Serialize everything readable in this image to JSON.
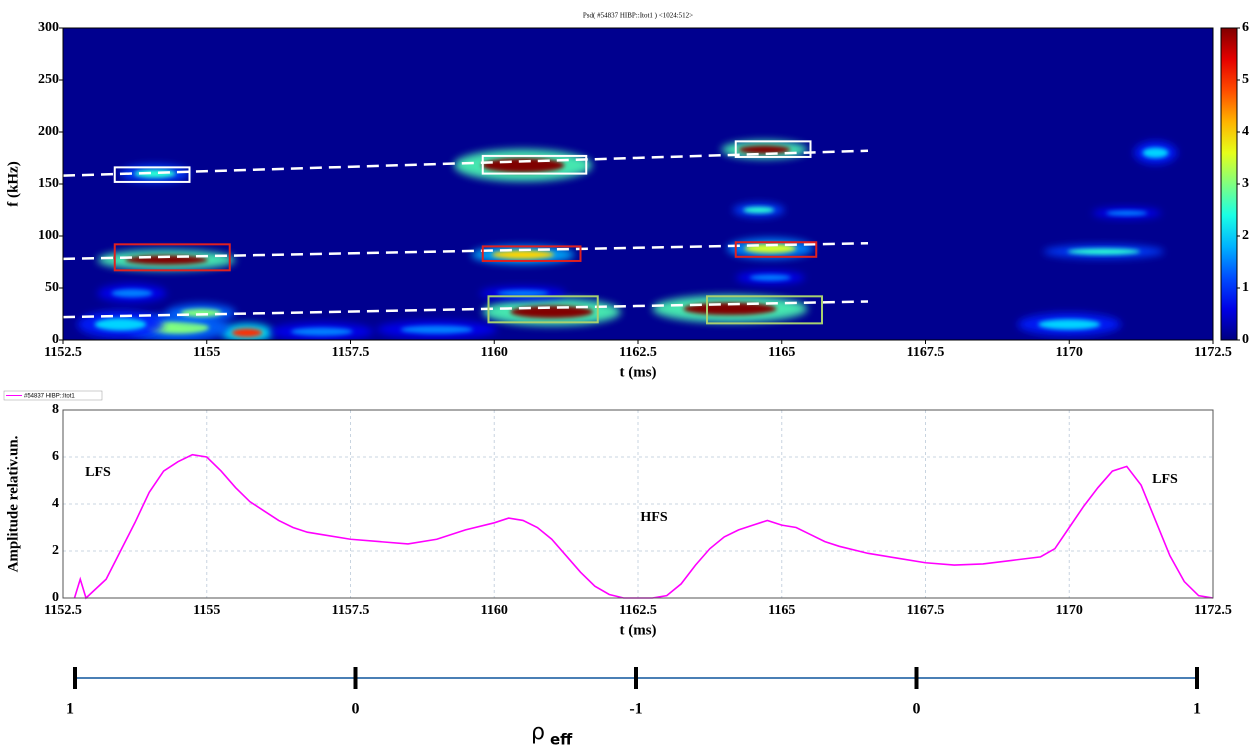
{
  "chart_data": [
    {
      "type": "heatmap",
      "title": "Psd( #54837 HIBP::Itot1 )  <1024:512>",
      "xlabel": "t (ms)",
      "ylabel": "f (kHz)",
      "xlim": [
        1152.5,
        1172.5
      ],
      "xticks": [
        1152.5,
        1155,
        1157.5,
        1160,
        1162.5,
        1165,
        1167.5,
        1170,
        1172.5
      ],
      "ylim": [
        0,
        300
      ],
      "yticks": [
        0,
        50,
        100,
        150,
        200,
        250,
        300
      ],
      "clim": [
        0,
        6
      ],
      "cticks": [
        0,
        1,
        2,
        3,
        4,
        5,
        6
      ],
      "grid": false,
      "blobs": [
        {
          "t": 1154.3,
          "f": 77,
          "power": 6,
          "dt": 1.6,
          "df": 9
        },
        {
          "t": 1154.1,
          "f": 160,
          "power": 2.5,
          "dt": 0.8,
          "df": 8
        },
        {
          "t": 1160.5,
          "f": 168,
          "power": 6,
          "dt": 1.6,
          "df": 14
        },
        {
          "t": 1160.5,
          "f": 82,
          "power": 4,
          "dt": 1.2,
          "df": 8
        },
        {
          "t": 1161.0,
          "f": 27,
          "power": 6,
          "dt": 1.6,
          "df": 12
        },
        {
          "t": 1164.1,
          "f": 30,
          "power": 6,
          "dt": 1.8,
          "df": 12
        },
        {
          "t": 1164.7,
          "f": 183,
          "power": 6,
          "dt": 1.0,
          "df": 8
        },
        {
          "t": 1164.8,
          "f": 88,
          "power": 3.5,
          "dt": 1.0,
          "df": 9
        },
        {
          "t": 1164.6,
          "f": 125,
          "power": 2.5,
          "dt": 0.6,
          "df": 6
        },
        {
          "t": 1170.6,
          "f": 85,
          "power": 2.5,
          "dt": 1.4,
          "df": 6
        },
        {
          "t": 1171.5,
          "f": 180,
          "power": 2,
          "dt": 0.5,
          "df": 10
        },
        {
          "t": 1171.0,
          "f": 122,
          "power": 1.5,
          "dt": 0.8,
          "df": 5
        },
        {
          "t": 1155.7,
          "f": 7,
          "power": 5,
          "dt": 0.6,
          "df": 8
        },
        {
          "t": 1154.5,
          "f": 12,
          "power": 3,
          "dt": 1.2,
          "df": 12
        },
        {
          "t": 1153.5,
          "f": 15,
          "power": 2,
          "dt": 1.0,
          "df": 12
        },
        {
          "t": 1154.9,
          "f": 26,
          "power": 3,
          "dt": 0.8,
          "df": 8
        },
        {
          "t": 1160.5,
          "f": 45,
          "power": 1.5,
          "dt": 1.0,
          "df": 6
        },
        {
          "t": 1164.8,
          "f": 60,
          "power": 1.5,
          "dt": 0.8,
          "df": 6
        },
        {
          "t": 1170.0,
          "f": 15,
          "power": 2,
          "dt": 1.2,
          "df": 10
        },
        {
          "t": 1159.0,
          "f": 10,
          "power": 1.5,
          "dt": 1.4,
          "df": 8
        },
        {
          "t": 1157.0,
          "f": 8,
          "power": 1.5,
          "dt": 1.2,
          "df": 8
        },
        {
          "t": 1153.7,
          "f": 45,
          "power": 1.5,
          "dt": 0.8,
          "df": 8
        }
      ],
      "trend_lines": [
        {
          "t": [
            1152.5,
            1166.5
          ],
          "f": [
            158,
            182
          ]
        },
        {
          "t": [
            1152.5,
            1166.5
          ],
          "f": [
            78,
            93
          ]
        },
        {
          "t": [
            1152.5,
            1166.5
          ],
          "f": [
            22,
            37
          ]
        }
      ],
      "boxes": [
        {
          "t": [
            1153.4,
            1154.7
          ],
          "f": [
            152,
            166
          ],
          "color": "#ffffff"
        },
        {
          "t": [
            1159.8,
            1161.6
          ],
          "f": [
            160,
            177
          ],
          "color": "#ffffff"
        },
        {
          "t": [
            1164.2,
            1165.5
          ],
          "f": [
            176,
            191
          ],
          "color": "#ffffff"
        },
        {
          "t": [
            1153.4,
            1155.4
          ],
          "f": [
            67,
            92
          ],
          "color": "#e02020"
        },
        {
          "t": [
            1159.8,
            1161.5
          ],
          "f": [
            76,
            90
          ],
          "color": "#e02020"
        },
        {
          "t": [
            1164.2,
            1165.6
          ],
          "f": [
            80,
            94
          ],
          "color": "#e02020"
        },
        {
          "t": [
            1159.9,
            1161.8
          ],
          "f": [
            17,
            42
          ],
          "color": "#a8d070"
        },
        {
          "t": [
            1163.7,
            1165.7
          ],
          "f": [
            16,
            42
          ],
          "color": "#a8d070"
        }
      ]
    },
    {
      "type": "line",
      "xlabel": "t (ms)",
      "ylabel": "Amplitude  relativ.un.",
      "xlim": [
        1152.5,
        1172.5
      ],
      "xticks": [
        1152.5,
        1155,
        1157.5,
        1160,
        1162.5,
        1165,
        1167.5,
        1170,
        1172.5
      ],
      "ylim": [
        0,
        8
      ],
      "yticks": [
        0,
        2,
        4,
        6,
        8
      ],
      "grid": true,
      "annotations": [
        "LFS",
        "HFS",
        "LFS"
      ],
      "x": [
        1152.7,
        1152.8,
        1152.9,
        1153.25,
        1153.5,
        1153.75,
        1154,
        1154.25,
        1154.5,
        1154.75,
        1155,
        1155.25,
        1155.5,
        1155.75,
        1156,
        1156.25,
        1156.5,
        1156.75,
        1157,
        1157.5,
        1158,
        1158.5,
        1159,
        1159.5,
        1160,
        1160.25,
        1160.5,
        1160.75,
        1161,
        1161.25,
        1161.5,
        1161.75,
        1162,
        1162.25,
        1162.5,
        1162.75,
        1163,
        1163.25,
        1163.5,
        1163.75,
        1164,
        1164.25,
        1164.5,
        1164.75,
        1165,
        1165.25,
        1165.5,
        1165.75,
        1166,
        1166.5,
        1167,
        1167.5,
        1168,
        1168.5,
        1169,
        1169.5,
        1169.75,
        1170,
        1170.25,
        1170.5,
        1170.75,
        1171,
        1171.25,
        1171.5,
        1171.75,
        1172,
        1172.25,
        1172.5
      ],
      "series": [
        {
          "name": "#54837 HIBP::Itot1",
          "color": "#ff00ff",
          "values": [
            0,
            0.8,
            0,
            0.8,
            2,
            3.2,
            4.5,
            5.4,
            5.8,
            6.1,
            6,
            5.4,
            4.7,
            4.1,
            3.7,
            3.3,
            3.0,
            2.8,
            2.7,
            2.5,
            2.4,
            2.3,
            2.5,
            2.9,
            3.2,
            3.4,
            3.3,
            3.0,
            2.5,
            1.8,
            1.1,
            0.5,
            0.15,
            0,
            0,
            0,
            0.1,
            0.6,
            1.4,
            2.1,
            2.6,
            2.9,
            3.1,
            3.3,
            3.1,
            3.0,
            2.7,
            2.4,
            2.2,
            1.9,
            1.7,
            1.5,
            1.4,
            1.45,
            1.6,
            1.75,
            2.1,
            3.0,
            3.9,
            4.7,
            5.4,
            5.6,
            4.8,
            3.3,
            1.8,
            0.7,
            0.1,
            0
          ]
        }
      ]
    }
  ],
  "rho_axis": {
    "label": "ρ",
    "subscript": "eff",
    "ticks": [
      1,
      0,
      -1,
      0,
      1
    ]
  }
}
